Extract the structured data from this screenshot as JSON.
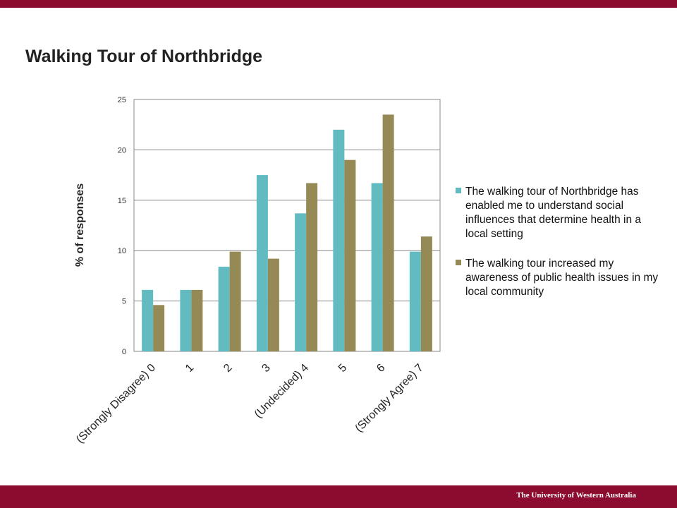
{
  "slide": {
    "title": "Walking Tour of Northbridge",
    "footer": "The University of Western Australia"
  },
  "colors": {
    "brand_bar": "#8b0c2e",
    "series1": "#62bbc1",
    "series2": "#958a56",
    "gridline": "#888888"
  },
  "chart_data": {
    "type": "bar",
    "ylabel": "% of responses",
    "ylim": [
      0,
      25
    ],
    "yticks": [
      0,
      5,
      10,
      15,
      20,
      25
    ],
    "grid": true,
    "legend_position": "right",
    "categories": [
      "(Strongly Disagree) 0",
      "1",
      "2",
      "3",
      "(Undecided) 4",
      "5",
      "6",
      "(Strongly Agree) 7"
    ],
    "series": [
      {
        "name": "The walking tour of Northbridge has enabled me to  understand social influences that determine health in a local setting",
        "values": [
          6.1,
          6.1,
          8.4,
          17.5,
          13.7,
          22.0,
          16.7,
          9.9
        ]
      },
      {
        "name": "The walking tour increased my awareness of public health issues in my local community",
        "values": [
          4.6,
          6.1,
          9.9,
          9.2,
          16.7,
          19.0,
          23.5,
          11.4
        ]
      }
    ]
  }
}
